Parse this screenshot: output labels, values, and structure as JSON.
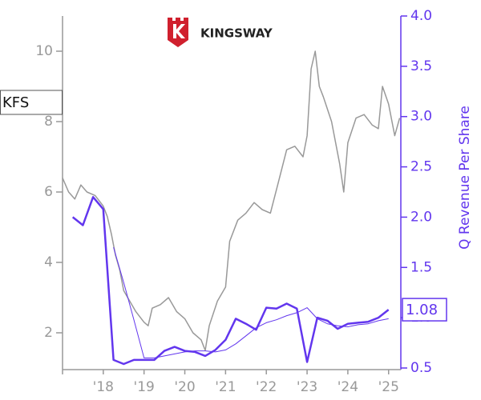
{
  "chart_data": {
    "type": "line",
    "ticker": "KFS",
    "logo_text": "KINGSWAY",
    "y2_label": "Q Revenue Per Share",
    "xlim": [
      2017,
      2025.3
    ],
    "xticks": [
      {
        "value": 2018,
        "label": "'18"
      },
      {
        "value": 2019,
        "label": "'19"
      },
      {
        "value": 2020,
        "label": "'20"
      },
      {
        "value": 2021,
        "label": "'21"
      },
      {
        "value": 2022,
        "label": "'22"
      },
      {
        "value": 2023,
        "label": "'23"
      },
      {
        "value": 2024,
        "label": "'24"
      },
      {
        "value": 2025,
        "label": "'25"
      }
    ],
    "ylim": [
      1,
      11
    ],
    "yticks": [
      2,
      4,
      6,
      8,
      10
    ],
    "y2lim": [
      0.5,
      4.0
    ],
    "y2ticks": [
      0.5,
      {
        "value": 1,
        "label": "1.0"
      },
      1.5,
      {
        "value": 2,
        "label": "2.0"
      },
      2.5,
      {
        "value": 3,
        "label": "3.0"
      },
      3.5,
      {
        "value": 4,
        "label": "4.0"
      }
    ],
    "series": [
      {
        "color": "#999999",
        "axis": "y",
        "x": [
          2017.0,
          2017.15,
          2017.3,
          2017.45,
          2017.6,
          2017.8,
          2018.0,
          2018.1,
          2018.2,
          2018.3,
          2018.4,
          2018.5,
          2018.6,
          2018.8,
          2019.0,
          2019.1,
          2019.2,
          2019.4,
          2019.6,
          2019.8,
          2020.0,
          2020.2,
          2020.4,
          2020.5,
          2020.6,
          2020.8,
          2021.0,
          2021.1,
          2021.3,
          2021.5,
          2021.7,
          2021.9,
          2022.1,
          2022.3,
          2022.5,
          2022.7,
          2022.9,
          2023.0,
          2023.1,
          2023.2,
          2023.3,
          2023.4,
          2023.6,
          2023.8,
          2023.9,
          2024.0,
          2024.2,
          2024.4,
          2024.6,
          2024.75,
          2024.85,
          2025.0,
          2025.15,
          2025.27
        ],
        "values": [
          6.4,
          6.0,
          5.8,
          6.2,
          6.0,
          5.9,
          5.6,
          5.3,
          4.8,
          4.2,
          3.8,
          3.2,
          3.0,
          2.6,
          2.3,
          2.2,
          2.7,
          2.8,
          3.0,
          2.6,
          2.4,
          2.0,
          1.8,
          1.5,
          2.2,
          2.9,
          3.3,
          4.6,
          5.2,
          5.4,
          5.7,
          5.5,
          5.4,
          6.3,
          7.2,
          7.3,
          7.0,
          7.6,
          9.5,
          10.0,
          9.0,
          8.7,
          8.0,
          6.8,
          6.0,
          7.4,
          8.1,
          8.2,
          7.9,
          7.8,
          9.0,
          8.5,
          7.6,
          8.1
        ]
      },
      {
        "color": "#6236ee",
        "axis": "y2",
        "x": [
          2017.25,
          2017.5,
          2017.75,
          2018.0,
          2018.25,
          2018.5,
          2018.75,
          2019.0,
          2019.25,
          2019.5,
          2019.75,
          2020.0,
          2020.25,
          2020.5,
          2020.75,
          2021.0,
          2021.25,
          2021.5,
          2021.75,
          2022.0,
          2022.25,
          2022.5,
          2022.75,
          2023.0,
          2023.25,
          2023.5,
          2023.75,
          2024.0,
          2024.25,
          2024.5,
          2024.75,
          2025.0
        ],
        "values": [
          2.0,
          1.92,
          2.2,
          2.08,
          0.58,
          0.54,
          0.58,
          0.58,
          0.58,
          0.67,
          0.71,
          0.67,
          0.66,
          0.62,
          0.68,
          0.78,
          0.99,
          0.94,
          0.88,
          1.1,
          1.09,
          1.14,
          1.09,
          0.56,
          1.0,
          0.97,
          0.89,
          0.94,
          0.95,
          0.96,
          1.0,
          1.08
        ],
        "value_labels": [
          null,
          null,
          null,
          null,
          null,
          null,
          null,
          null,
          null,
          null,
          null,
          null,
          null,
          null,
          null,
          null,
          null,
          null,
          null,
          null,
          null,
          null,
          null,
          null,
          null,
          null,
          null,
          null,
          null,
          null,
          null,
          "1.08"
        ]
      },
      {
        "color": "#6236ee",
        "axis": "y2",
        "x": [
          2017.25,
          2017.5,
          2017.75,
          2018.0,
          2018.25,
          2018.5,
          2018.75,
          2019.0,
          2019.25,
          2019.5,
          2019.75,
          2020.0,
          2020.25,
          2020.5,
          2020.75,
          2021.0,
          2021.25,
          2021.5,
          2021.75,
          2022.0,
          2022.25,
          2022.5,
          2022.75,
          2023.0,
          2023.25,
          2023.5,
          2023.75,
          2024.0,
          2024.25,
          2024.5,
          2024.75,
          2025.0
        ],
        "values": [
          null,
          null,
          null,
          null,
          1.7,
          1.35,
          0.98,
          0.6,
          0.6,
          0.62,
          0.64,
          0.66,
          0.67,
          0.67,
          0.66,
          0.68,
          0.74,
          0.82,
          0.9,
          0.95,
          0.98,
          1.02,
          1.05,
          1.1,
          0.99,
          0.94,
          0.92,
          0.91,
          0.93,
          0.94,
          0.97,
          0.99
        ]
      }
    ]
  }
}
